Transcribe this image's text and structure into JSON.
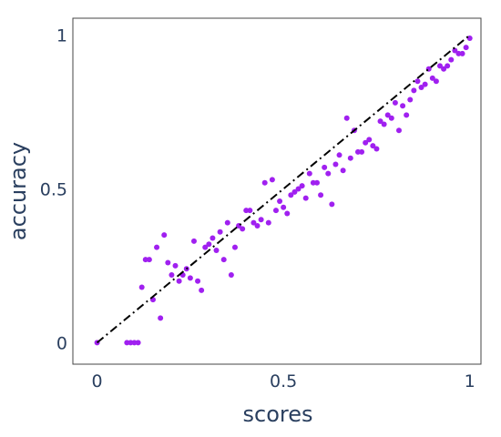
{
  "chart_data": {
    "type": "scatter",
    "title": "",
    "xlabel": "scores",
    "ylabel": "accuracy",
    "xlim": [
      -0.065,
      1.03
    ],
    "ylim": [
      -0.07,
      1.055
    ],
    "xticks": [
      {
        "value": 0,
        "label": "0"
      },
      {
        "value": 0.5,
        "label": "0.5"
      },
      {
        "value": 1,
        "label": "1"
      }
    ],
    "yticks": [
      {
        "value": 0,
        "label": "0"
      },
      {
        "value": 0.5,
        "label": "0.5"
      },
      {
        "value": 1,
        "label": "1"
      }
    ],
    "grid": false,
    "legend": "none",
    "reference_line": {
      "x": [
        0,
        1
      ],
      "y": [
        0,
        1
      ],
      "style": "dash-dot",
      "color": "#000000"
    },
    "series": [
      {
        "marker_color": "#a020f0",
        "points": [
          [
            0.0,
            0.0
          ],
          [
            0.08,
            0.0
          ],
          [
            0.09,
            0.0
          ],
          [
            0.1,
            0.0
          ],
          [
            0.11,
            0.0
          ],
          [
            0.12,
            0.18
          ],
          [
            0.13,
            0.27
          ],
          [
            0.14,
            0.27
          ],
          [
            0.15,
            0.14
          ],
          [
            0.16,
            0.31
          ],
          [
            0.17,
            0.08
          ],
          [
            0.18,
            0.35
          ],
          [
            0.19,
            0.26
          ],
          [
            0.2,
            0.22
          ],
          [
            0.21,
            0.25
          ],
          [
            0.22,
            0.2
          ],
          [
            0.23,
            0.22
          ],
          [
            0.24,
            0.24
          ],
          [
            0.25,
            0.21
          ],
          [
            0.26,
            0.33
          ],
          [
            0.27,
            0.2
          ],
          [
            0.28,
            0.17
          ],
          [
            0.29,
            0.31
          ],
          [
            0.3,
            0.32
          ],
          [
            0.31,
            0.34
          ],
          [
            0.32,
            0.3
          ],
          [
            0.33,
            0.36
          ],
          [
            0.34,
            0.27
          ],
          [
            0.35,
            0.39
          ],
          [
            0.36,
            0.22
          ],
          [
            0.37,
            0.31
          ],
          [
            0.38,
            0.38
          ],
          [
            0.39,
            0.37
          ],
          [
            0.4,
            0.43
          ],
          [
            0.41,
            0.43
          ],
          [
            0.42,
            0.39
          ],
          [
            0.43,
            0.38
          ],
          [
            0.44,
            0.4
          ],
          [
            0.45,
            0.52
          ],
          [
            0.46,
            0.39
          ],
          [
            0.47,
            0.53
          ],
          [
            0.48,
            0.43
          ],
          [
            0.49,
            0.46
          ],
          [
            0.5,
            0.44
          ],
          [
            0.51,
            0.42
          ],
          [
            0.52,
            0.48
          ],
          [
            0.53,
            0.49
          ],
          [
            0.54,
            0.5
          ],
          [
            0.55,
            0.51
          ],
          [
            0.56,
            0.47
          ],
          [
            0.57,
            0.55
          ],
          [
            0.58,
            0.52
          ],
          [
            0.59,
            0.52
          ],
          [
            0.6,
            0.48
          ],
          [
            0.61,
            0.57
          ],
          [
            0.62,
            0.55
          ],
          [
            0.63,
            0.45
          ],
          [
            0.64,
            0.58
          ],
          [
            0.65,
            0.61
          ],
          [
            0.66,
            0.56
          ],
          [
            0.67,
            0.73
          ],
          [
            0.68,
            0.6
          ],
          [
            0.69,
            0.69
          ],
          [
            0.7,
            0.62
          ],
          [
            0.71,
            0.62
          ],
          [
            0.72,
            0.65
          ],
          [
            0.73,
            0.66
          ],
          [
            0.74,
            0.64
          ],
          [
            0.75,
            0.63
          ],
          [
            0.76,
            0.72
          ],
          [
            0.77,
            0.71
          ],
          [
            0.78,
            0.74
          ],
          [
            0.79,
            0.73
          ],
          [
            0.8,
            0.78
          ],
          [
            0.81,
            0.69
          ],
          [
            0.82,
            0.77
          ],
          [
            0.83,
            0.74
          ],
          [
            0.84,
            0.79
          ],
          [
            0.85,
            0.82
          ],
          [
            0.86,
            0.85
          ],
          [
            0.87,
            0.83
          ],
          [
            0.88,
            0.84
          ],
          [
            0.89,
            0.89
          ],
          [
            0.9,
            0.86
          ],
          [
            0.91,
            0.85
          ],
          [
            0.92,
            0.9
          ],
          [
            0.93,
            0.89
          ],
          [
            0.94,
            0.9
          ],
          [
            0.95,
            0.92
          ],
          [
            0.96,
            0.95
          ],
          [
            0.97,
            0.94
          ],
          [
            0.98,
            0.94
          ],
          [
            0.99,
            0.96
          ],
          [
            1.0,
            0.99
          ]
        ]
      }
    ]
  }
}
